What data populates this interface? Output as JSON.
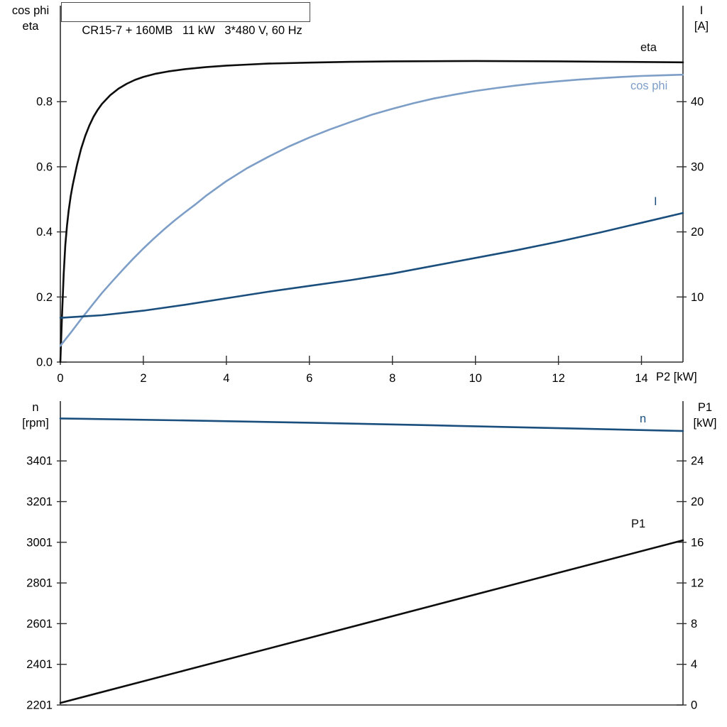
{
  "colors": {
    "curve_black": "#0d0d0d",
    "curve_light_blue": "#7d9ec7",
    "curve_dark_blue": "#1a4e7d",
    "axis": "#2e2e2e",
    "background": "#ffffff",
    "text": "#000000"
  },
  "chart_data": [
    {
      "id": "motor-curves-top",
      "type": "line",
      "title": "CR15-7 + 160MB   11 kW   3*480 V, 60 Hz",
      "grid": false,
      "legend_position": "inline-labels",
      "x_axis": {
        "label": "P2 [kW]",
        "min": 0,
        "max": 15,
        "ticks": [
          0,
          2,
          4,
          6,
          8,
          10,
          12,
          14
        ],
        "tick_labels": [
          "0",
          "2",
          "4",
          "6",
          "8",
          "10",
          "12",
          "14"
        ]
      },
      "left_axis": {
        "label": [
          "cos phi",
          "eta"
        ],
        "min": 0,
        "max": 1.095,
        "ticks": [
          0,
          0.2,
          0.4,
          0.6,
          0.8
        ],
        "tick_labels": [
          "0.0",
          "0.2",
          "0.4",
          "0.6",
          "0.8"
        ]
      },
      "right_axis": {
        "label": [
          "I",
          "[A]"
        ],
        "min": 0,
        "max": 54.75,
        "ticks": [
          10,
          20,
          30,
          40
        ],
        "tick_labels": [
          "10",
          "20",
          "30",
          "40"
        ]
      },
      "series": [
        {
          "name": "eta",
          "axis": "left",
          "color": "#0d0d0d",
          "points": [
            [
              0,
              0
            ],
            [
              0.04,
              0.14
            ],
            [
              0.08,
              0.27
            ],
            [
              0.12,
              0.36
            ],
            [
              0.16,
              0.42
            ],
            [
              0.2,
              0.465
            ],
            [
              0.25,
              0.51
            ],
            [
              0.3,
              0.545
            ],
            [
              0.4,
              0.605
            ],
            [
              0.5,
              0.655
            ],
            [
              0.6,
              0.695
            ],
            [
              0.7,
              0.727
            ],
            [
              0.8,
              0.754
            ],
            [
              0.9,
              0.775
            ],
            [
              1.0,
              0.793
            ],
            [
              1.2,
              0.82
            ],
            [
              1.4,
              0.84
            ],
            [
              1.6,
              0.855
            ],
            [
              1.8,
              0.867
            ],
            [
              2.0,
              0.876
            ],
            [
              2.3,
              0.886
            ],
            [
              2.6,
              0.893
            ],
            [
              3.0,
              0.9
            ],
            [
              3.5,
              0.906
            ],
            [
              4.0,
              0.911
            ],
            [
              4.5,
              0.914
            ],
            [
              5.0,
              0.917
            ],
            [
              6.0,
              0.92
            ],
            [
              7.0,
              0.9225
            ],
            [
              8.0,
              0.924
            ],
            [
              9.0,
              0.9245
            ],
            [
              10.0,
              0.925
            ],
            [
              11.0,
              0.9245
            ],
            [
              12.0,
              0.924
            ],
            [
              13.0,
              0.923
            ],
            [
              14.0,
              0.922
            ],
            [
              15.0,
              0.921
            ]
          ]
        },
        {
          "name": "cos phi",
          "axis": "left",
          "color": "#7d9ec7",
          "points": [
            [
              0,
              0.05
            ],
            [
              0.25,
              0.09
            ],
            [
              0.5,
              0.132
            ],
            [
              0.75,
              0.172
            ],
            [
              1,
              0.212
            ],
            [
              1.25,
              0.248
            ],
            [
              1.5,
              0.283
            ],
            [
              1.75,
              0.317
            ],
            [
              2,
              0.349
            ],
            [
              2.25,
              0.379
            ],
            [
              2.5,
              0.408
            ],
            [
              2.75,
              0.435
            ],
            [
              3,
              0.46
            ],
            [
              3.25,
              0.484
            ],
            [
              3.5,
              0.51
            ],
            [
              3.75,
              0.533
            ],
            [
              4,
              0.556
            ],
            [
              4.5,
              0.596
            ],
            [
              5,
              0.63
            ],
            [
              5.5,
              0.662
            ],
            [
              6,
              0.69
            ],
            [
              6.5,
              0.715
            ],
            [
              7,
              0.738
            ],
            [
              7.5,
              0.76
            ],
            [
              8,
              0.778
            ],
            [
              8.5,
              0.795
            ],
            [
              9,
              0.81
            ],
            [
              9.5,
              0.822
            ],
            [
              10,
              0.833
            ],
            [
              10.5,
              0.842
            ],
            [
              11,
              0.85
            ],
            [
              11.5,
              0.857
            ],
            [
              12,
              0.863
            ],
            [
              12.5,
              0.868
            ],
            [
              13,
              0.872
            ],
            [
              13.5,
              0.876
            ],
            [
              14,
              0.879
            ],
            [
              14.5,
              0.881
            ],
            [
              15,
              0.883
            ]
          ]
        },
        {
          "name": "I",
          "axis": "right",
          "color": "#1a4e7d",
          "points": [
            [
              0,
              6.8
            ],
            [
              1,
              7.2
            ],
            [
              2,
              7.9
            ],
            [
              3,
              8.8
            ],
            [
              4,
              9.8
            ],
            [
              5,
              10.8
            ],
            [
              6,
              11.7
            ],
            [
              7,
              12.6
            ],
            [
              8,
              13.6
            ],
            [
              9,
              14.8
            ],
            [
              10,
              16.0
            ],
            [
              11,
              17.2
            ],
            [
              12,
              18.5
            ],
            [
              13,
              19.9
            ],
            [
              14,
              21.4
            ],
            [
              15,
              22.9
            ]
          ]
        }
      ]
    },
    {
      "id": "speed-power-bottom",
      "type": "line",
      "title": "",
      "grid": false,
      "legend_position": "inline-labels",
      "x_axis": {
        "label": "",
        "min": 0,
        "max": 15
      },
      "left_axis": {
        "label": [
          "n",
          "[rpm]"
        ],
        "min": 2201,
        "max": 3695,
        "ticks": [
          2201,
          2401,
          2601,
          2801,
          3001,
          3201,
          3401
        ],
        "tick_labels": [
          "2201",
          "2401",
          "2601",
          "2801",
          "3001",
          "3201",
          "3401"
        ]
      },
      "right_axis": {
        "label": [
          "P1",
          "[kW]"
        ],
        "min": 0,
        "max": 29.88,
        "ticks": [
          0,
          4,
          8,
          12,
          16,
          20,
          24
        ],
        "tick_labels": [
          "0",
          "4",
          "8",
          "12",
          "16",
          "20",
          "24"
        ]
      },
      "series": [
        {
          "name": "n",
          "axis": "left",
          "color": "#1a4e7d",
          "points": [
            [
              0,
              3610
            ],
            [
              3,
              3600
            ],
            [
              6,
              3589
            ],
            [
              9,
              3576
            ],
            [
              12,
              3562
            ],
            [
              15,
              3548
            ]
          ]
        },
        {
          "name": "P1",
          "axis": "right",
          "color": "#0d0d0d",
          "points": [
            [
              0,
              0.2
            ],
            [
              3,
              3.4
            ],
            [
              6,
              6.6
            ],
            [
              9,
              9.8
            ],
            [
              12,
              13.0
            ],
            [
              15,
              16.2
            ]
          ]
        }
      ]
    }
  ]
}
